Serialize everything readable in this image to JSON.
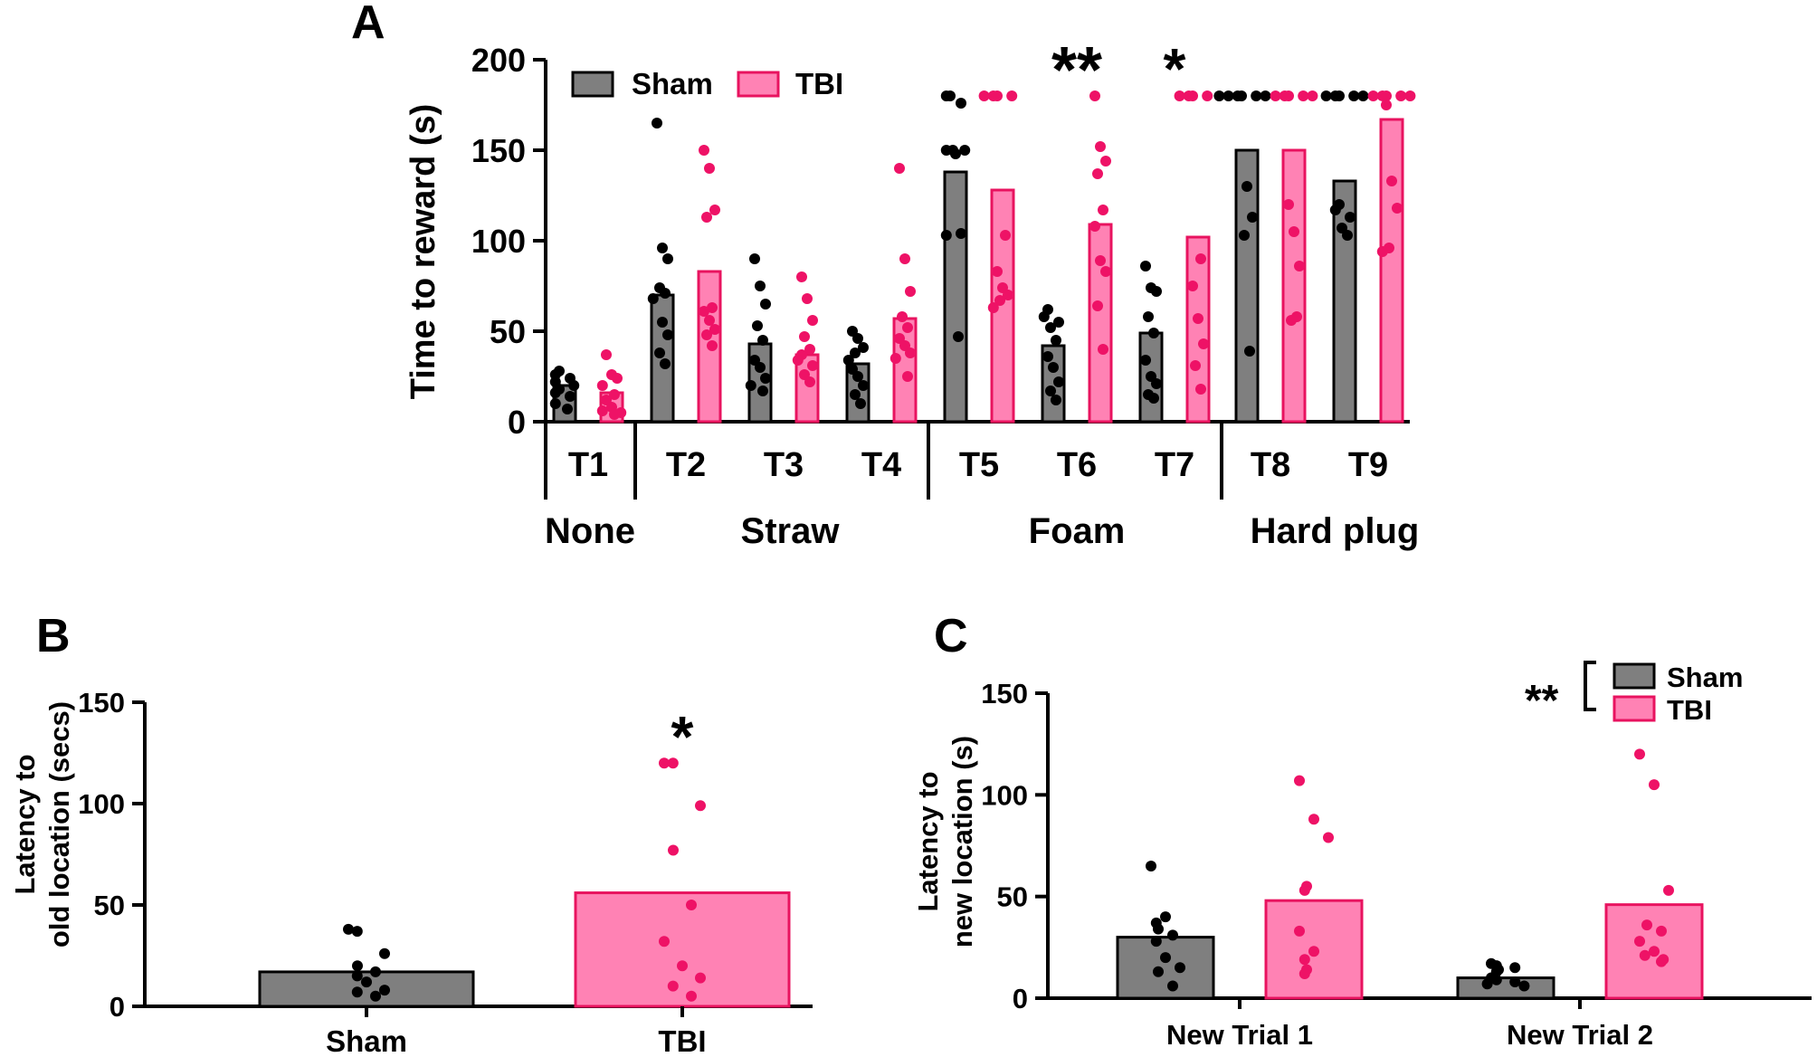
{
  "colors": {
    "sham_fill": "#7f7f7f",
    "sham_dot": "#000000",
    "tbi_fill": "#ff82b4",
    "tbi_dot": "#ee1266",
    "edge": "#000000",
    "tbi_edge": "#e8135f"
  },
  "chart_data": [
    {
      "panel": "A",
      "type": "bar",
      "ylabel": "Time to reward (s)",
      "ylim": [
        0,
        200
      ],
      "yticks": [
        "0",
        "50",
        "100",
        "150",
        "200"
      ],
      "categories": [
        "T1",
        "T2",
        "T3",
        "T4",
        "T5",
        "T6",
        "T7",
        "T8",
        "T9"
      ],
      "groups": [
        {
          "label": "None",
          "from": 0,
          "to": 0
        },
        {
          "label": "Straw",
          "from": 1,
          "to": 3
        },
        {
          "label": "Foam",
          "from": 4,
          "to": 6
        },
        {
          "label": "Hard plug",
          "from": 7,
          "to": 8
        }
      ],
      "legend": {
        "position": "top-left",
        "entries": [
          "Sham",
          "TBI"
        ]
      },
      "series": [
        {
          "name": "Sham",
          "values": [
            20,
            70,
            43,
            32,
            138,
            42,
            49,
            150,
            133
          ],
          "points": [
            [
              28,
              26,
              24,
              22,
              20,
              18,
              16,
              14,
              10,
              7
            ],
            [
              165,
              96,
              90,
              74,
              71,
              68,
              55,
              48,
              38,
              32
            ],
            [
              90,
              75,
              65,
              53,
              45,
              34,
              30,
              24,
              20,
              17
            ],
            [
              50,
              46,
              41,
              38,
              34,
              29,
              25,
              20,
              15,
              10
            ],
            [
              180,
              180,
              176,
              150,
              150,
              150,
              148,
              104,
              103,
              47
            ],
            [
              62,
              58,
              55,
              52,
              45,
              36,
              30,
              22,
              17,
              12
            ],
            [
              86,
              74,
              72,
              58,
              49,
              34,
              25,
              21,
              15,
              13
            ],
            [
              180,
              180,
              180,
              180,
              180,
              180,
              130,
              113,
              103,
              39
            ],
            [
              180,
              180,
              180,
              180,
              180,
              120,
              117,
              113,
              107,
              103
            ]
          ]
        },
        {
          "name": "TBI",
          "values": [
            16,
            83,
            37,
            57,
            128,
            109,
            102,
            150,
            167
          ],
          "points": [
            [
              37,
              26,
              24,
              20,
              15,
              12,
              8,
              6,
              5,
              4
            ],
            [
              150,
              140,
              117,
              113,
              63,
              61,
              56,
              51,
              48,
              42
            ],
            [
              80,
              68,
              56,
              47,
              40,
              37,
              34,
              31,
              26,
              22
            ],
            [
              140,
              90,
              72,
              58,
              52,
              46,
              42,
              38,
              35,
              25
            ],
            [
              180,
              180,
              180,
              180,
              103,
              83,
              74,
              70,
              67,
              63
            ],
            [
              180,
              152,
              144,
              137,
              117,
              108,
              89,
              83,
              64,
              40
            ],
            [
              180,
              180,
              180,
              180,
              90,
              75,
              57,
              43,
              31,
              18
            ],
            [
              180,
              180,
              180,
              180,
              180,
              120,
              105,
              86,
              56,
              58
            ],
            [
              180,
              180,
              180,
              180,
              180,
              175,
              133,
              118,
              96,
              94
            ]
          ]
        }
      ],
      "annotations": [
        {
          "category": 5,
          "text": "**"
        },
        {
          "category": 6,
          "text": "*"
        }
      ]
    },
    {
      "panel": "B",
      "type": "bar",
      "ylabel": [
        "Latency to",
        "old location (secs)"
      ],
      "ylim": [
        0,
        150
      ],
      "yticks": [
        "0",
        "50",
        "100",
        "150"
      ],
      "categories": [
        "Sham",
        "TBI"
      ],
      "values": [
        17,
        56
      ],
      "points": [
        [
          38,
          37,
          26,
          20,
          17,
          15,
          12,
          8,
          7,
          5
        ],
        [
          120,
          120,
          99,
          77,
          50,
          32,
          20,
          14,
          10,
          5
        ]
      ],
      "annotations": [
        {
          "category": 1,
          "text": "*"
        }
      ]
    },
    {
      "panel": "C",
      "type": "bar",
      "ylabel": [
        "Latency to",
        "new location (s)"
      ],
      "ylim": [
        0,
        150
      ],
      "yticks": [
        "0",
        "50",
        "100",
        "150"
      ],
      "categories": [
        "New Trial 1",
        "New Trial 2"
      ],
      "legend": {
        "position": "top-right",
        "entries": [
          "Sham",
          "TBI"
        ],
        "significance": "**"
      },
      "series": [
        {
          "name": "Sham",
          "values": [
            30,
            10
          ],
          "points": [
            [
              65,
              40,
              37,
              34,
              31,
              28,
              20,
              15,
              13,
              6
            ],
            [
              17,
              16,
              15,
              14,
              13,
              10,
              9,
              8,
              7,
              6
            ]
          ]
        },
        {
          "name": "TBI",
          "values": [
            48,
            46
          ],
          "points": [
            [
              107,
              88,
              79,
              55,
              53,
              33,
              23,
              19,
              14,
              12
            ],
            [
              120,
              105,
              53,
              36,
              33,
              28,
              23,
              21,
              19,
              18
            ]
          ]
        }
      ]
    }
  ]
}
